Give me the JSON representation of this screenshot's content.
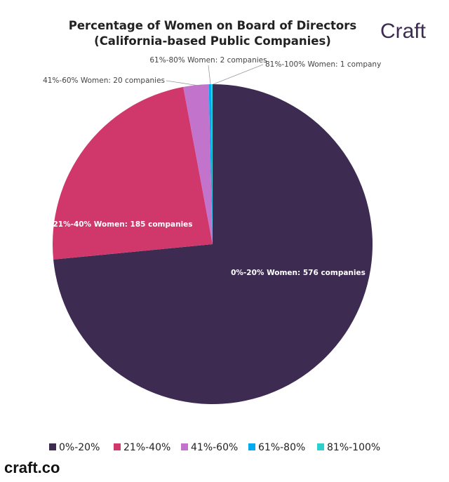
{
  "brand": {
    "logo": "Craft",
    "footer": "craft.co"
  },
  "chart_data": {
    "type": "pie",
    "title": "Percentage of Women on Board of Directors",
    "subtitle": "(California-based Public Companies)",
    "categories": [
      "0%-20%",
      "21%-40%",
      "41%-60%",
      "61%-80%",
      "81%-100%"
    ],
    "values": [
      576,
      185,
      20,
      2,
      1
    ],
    "colors": [
      "#3d2b52",
      "#d0386c",
      "#c274cc",
      "#00aaf0",
      "#2ecfcf"
    ],
    "data_labels": [
      "0%-20% Women: 576 companies",
      "21%-40% Women: 185 companies",
      "41%-60% Women: 20 companies",
      "61%-80% Women: 2 companies",
      "81%-100% Women: 1 company"
    ],
    "start_angle": "top, clockwise",
    "legend_position": "bottom"
  }
}
